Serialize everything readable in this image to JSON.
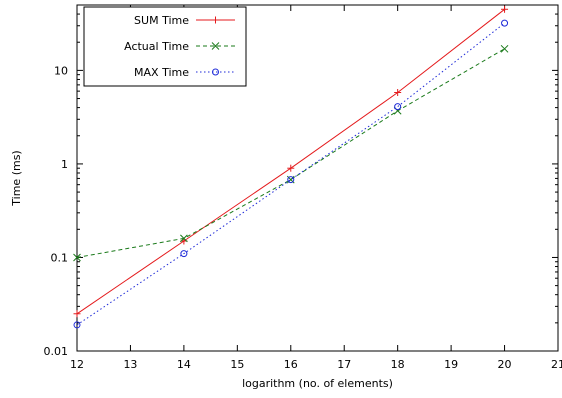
{
  "chart_data": {
    "type": "line",
    "xlabel": "logarithm (no. of elements)",
    "ylabel": "Time (ms)",
    "x_scale": "linear",
    "y_scale": "log",
    "xlim": [
      12,
      21
    ],
    "ylim": [
      0.01,
      50
    ],
    "x_ticks": [
      12,
      13,
      14,
      15,
      16,
      17,
      18,
      19,
      20,
      21
    ],
    "x_tick_labels": [
      "12",
      "13",
      "14",
      "15",
      "16",
      "17",
      "18",
      "19",
      "20",
      "21"
    ],
    "y_ticks": [
      0.01,
      0.1,
      1,
      10
    ],
    "y_tick_labels": [
      "0.01",
      "0.1",
      "1",
      "10"
    ],
    "grid": false,
    "legend_position": "top-left",
    "series": [
      {
        "name": "SUM Time",
        "color": "#e41a1c",
        "dash": "solid",
        "marker": "plus",
        "x": [
          12,
          14,
          16,
          18,
          20
        ],
        "values": [
          0.025,
          0.15,
          0.9,
          5.8,
          45
        ]
      },
      {
        "name": "Actual Time",
        "color": "#1a7a1a",
        "dash": "dashed",
        "marker": "cross",
        "x": [
          12,
          14,
          16,
          18,
          20
        ],
        "values": [
          0.1,
          0.16,
          0.68,
          3.7,
          17
        ]
      },
      {
        "name": "MAX Time",
        "color": "#1f2bd8",
        "dash": "dotted",
        "marker": "circle",
        "x": [
          12,
          14,
          16,
          18,
          20
        ],
        "values": [
          0.019,
          0.11,
          0.68,
          4.1,
          32
        ]
      }
    ]
  }
}
